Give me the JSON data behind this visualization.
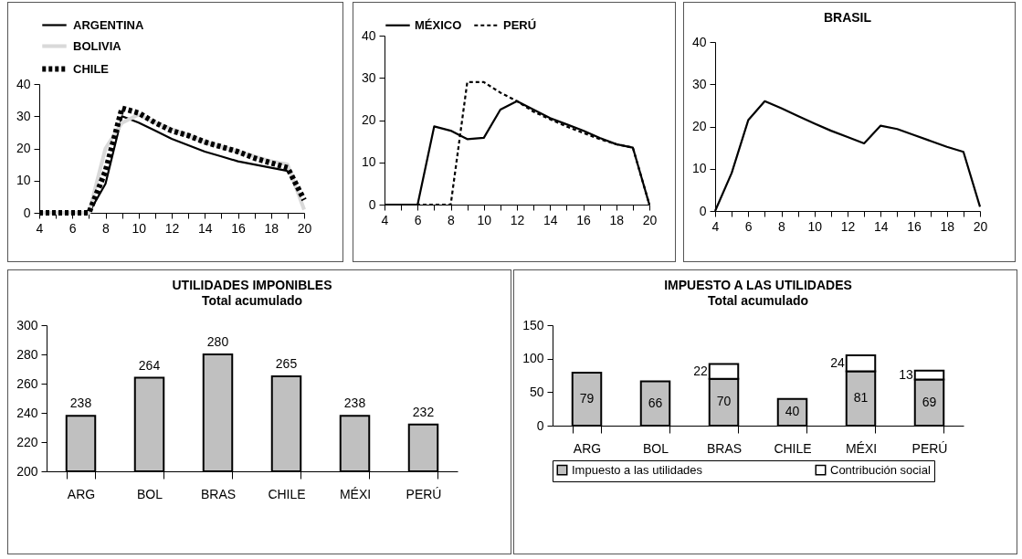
{
  "chart_data": [
    {
      "type": "line",
      "x": [
        4,
        5,
        6,
        7,
        8,
        9,
        10,
        11,
        12,
        13,
        14,
        15,
        16,
        17,
        18,
        19,
        20
      ],
      "xlim": [
        4,
        20
      ],
      "xticks": [
        4,
        {
          "value": 5,
          "label": null
        },
        6,
        {
          "value": 7,
          "label": null
        },
        8,
        {
          "value": 9,
          "label": null
        },
        10,
        {
          "value": 11,
          "label": null
        },
        12,
        {
          "value": 13,
          "label": null
        },
        14,
        {
          "value": 15,
          "label": null
        },
        16,
        {
          "value": 17,
          "label": null
        },
        18,
        {
          "value": 19,
          "label": null
        },
        20
      ],
      "ylim": [
        0,
        40
      ],
      "yticks": [
        0,
        10,
        20,
        30,
        40
      ],
      "legend": "top",
      "series": [
        {
          "name": "ARGENTINA",
          "color": "#000000",
          "line_style": "solid",
          "values": [
            0,
            0,
            0,
            0,
            9,
            30,
            28,
            25.5,
            23,
            21,
            19,
            17.5,
            16,
            15,
            14,
            13,
            null
          ]
        },
        {
          "name": "BOLIVIA",
          "color": "#d9d9d9",
          "line_style": "solid",
          "values": [
            0,
            0,
            0,
            0,
            20,
            28,
            30.5,
            28,
            26,
            24,
            22,
            20.5,
            19,
            17.5,
            16,
            15,
            1
          ]
        },
        {
          "name": "CHILE",
          "color": "#000000",
          "line_style": "dashed",
          "values": [
            0,
            0,
            0,
            0,
            13,
            32.5,
            31,
            28,
            25.5,
            24,
            22,
            20.5,
            19,
            17,
            15.5,
            14,
            4
          ]
        }
      ]
    },
    {
      "type": "line",
      "x": [
        4,
        5,
        6,
        7,
        8,
        9,
        10,
        11,
        12,
        13,
        14,
        15,
        16,
        17,
        18,
        19,
        20
      ],
      "xlim": [
        4,
        20
      ],
      "xticks": [
        4,
        {
          "value": 5,
          "label": null
        },
        6,
        {
          "value": 7,
          "label": null
        },
        8,
        {
          "value": 9,
          "label": null
        },
        10,
        {
          "value": 11,
          "label": null
        },
        12,
        {
          "value": 13,
          "label": null
        },
        14,
        {
          "value": 15,
          "label": null
        },
        16,
        {
          "value": 17,
          "label": null
        },
        18,
        {
          "value": 19,
          "label": null
        },
        20
      ],
      "ylim": [
        0,
        40
      ],
      "yticks": [
        0,
        10,
        20,
        30,
        40
      ],
      "legend": "top",
      "series": [
        {
          "name": "MÉXICO",
          "color": "#000000",
          "line_style": "solid",
          "values": [
            0,
            0,
            0,
            18.5,
            17.5,
            15.5,
            15.8,
            22.5,
            24.5,
            22.5,
            20.5,
            19,
            17.5,
            15.8,
            14.3,
            13.5,
            0
          ]
        },
        {
          "name": "PERÚ",
          "color": "#000000",
          "line_style": "dashed",
          "values": [
            0,
            0,
            0,
            0,
            0,
            29,
            29,
            26.5,
            24.5,
            22,
            20.2,
            18.5,
            17,
            15.5,
            14.3,
            13.5,
            0
          ]
        }
      ]
    },
    {
      "type": "line",
      "title": "BRASIL",
      "x": [
        4,
        5,
        6,
        7,
        8,
        9,
        10,
        11,
        12,
        13,
        14,
        15,
        16,
        17,
        18,
        19,
        20
      ],
      "xlim": [
        4,
        20
      ],
      "xticks": [
        4,
        {
          "value": 5,
          "label": null
        },
        6,
        {
          "value": 7,
          "label": null
        },
        8,
        {
          "value": 9,
          "label": null
        },
        10,
        {
          "value": 11,
          "label": null
        },
        12,
        {
          "value": 13,
          "label": null
        },
        14,
        {
          "value": 15,
          "label": null
        },
        16,
        {
          "value": 17,
          "label": null
        },
        18,
        {
          "value": 19,
          "label": null
        },
        20
      ],
      "ylim": [
        0,
        40
      ],
      "yticks": [
        0,
        10,
        20,
        30,
        40
      ],
      "series": [
        {
          "color": "#000000",
          "line_style": "solid",
          "values": [
            0,
            9,
            21.5,
            26,
            24.3,
            22.5,
            20.7,
            19,
            17.5,
            16,
            20.2,
            19.4,
            18,
            16.6,
            15.2,
            14,
            1
          ]
        }
      ]
    },
    {
      "type": "bar",
      "title": "UTILIDADES IMPONIBLES",
      "subtitle": "Total acumulado",
      "categories": [
        "ARG",
        "BOL",
        "BRAS",
        "CHILE",
        "MÉXI",
        "PERÚ"
      ],
      "values": [
        238,
        264,
        280,
        265,
        238,
        232
      ],
      "color": "#c0c0c0",
      "ylim": [
        200,
        300
      ],
      "yticks": [
        200,
        220,
        240,
        260,
        280,
        300
      ],
      "data_labels": true
    },
    {
      "type": "bar",
      "title": "IMPUESTO A LAS UTILIDADES",
      "subtitle": "Total acumulado",
      "categories": [
        "ARG",
        "BOL",
        "BRAS",
        "CHILE",
        "MÉXI",
        "PERÚ"
      ],
      "stacked": true,
      "ylim": [
        0,
        150
      ],
      "yticks": [
        0,
        50,
        100,
        150
      ],
      "legend": "bottom",
      "series": [
        {
          "name": "Impuesto a las utilidades",
          "color": "#c0c0c0",
          "values": [
            79,
            66,
            70,
            40,
            81,
            69
          ],
          "value_labels": [
            "79",
            "66",
            "70",
            "40",
            "81",
            "69"
          ]
        },
        {
          "name": "Contribución social",
          "color": "#ffffff",
          "values": [
            null,
            null,
            22,
            null,
            24,
            13
          ],
          "value_labels": [
            null,
            null,
            "22",
            null,
            "24",
            "13"
          ]
        }
      ]
    }
  ]
}
